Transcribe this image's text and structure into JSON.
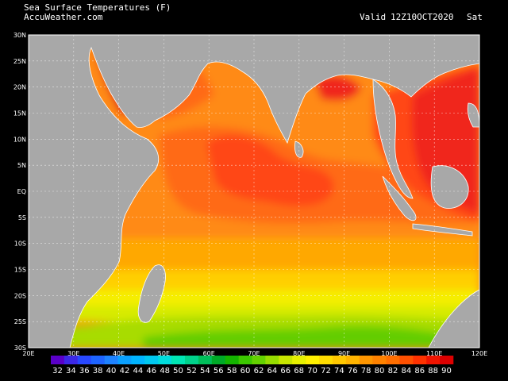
{
  "header": {
    "title": "Sea Surface Temperatures (F)",
    "source": "AccuWeather.com",
    "valid_label": "Valid",
    "valid_time": "12Z10OCT2020",
    "weekday": "Sat"
  },
  "map": {
    "lon_labels": [
      "20E",
      "30E",
      "40E",
      "50E",
      "60E",
      "70E",
      "80E",
      "90E",
      "100E",
      "110E",
      "120E"
    ],
    "lat_labels": [
      "30N",
      "25N",
      "20N",
      "15N",
      "10N",
      "5N",
      "EQ",
      "5S",
      "10S",
      "15S",
      "20S",
      "25S",
      "30S"
    ]
  },
  "legend": {
    "values": [
      "32",
      "34",
      "36",
      "38",
      "40",
      "42",
      "44",
      "46",
      "48",
      "50",
      "52",
      "54",
      "56",
      "58",
      "60",
      "62",
      "64",
      "66",
      "68",
      "70",
      "72",
      "74",
      "76",
      "78",
      "80",
      "82",
      "84",
      "86",
      "88",
      "90"
    ],
    "colors": [
      "#5a00c8",
      "#3c28e6",
      "#2848ff",
      "#1e64ff",
      "#1e82ff",
      "#0aa0ff",
      "#00b4ff",
      "#00c8f0",
      "#00dcdc",
      "#00e6b4",
      "#00d28c",
      "#00be5a",
      "#00aa28",
      "#14b400",
      "#3cc800",
      "#64d200",
      "#96dc00",
      "#c8e600",
      "#e6f000",
      "#fff000",
      "#ffdc00",
      "#ffc800",
      "#ffb400",
      "#ff9600",
      "#ff8200",
      "#ff6e00",
      "#ff5000",
      "#ff3200",
      "#f01400",
      "#dc0000"
    ],
    "ocean_colors": {
      "c76": "#ffcf00",
      "c78": "#ffa800",
      "c80": "#ff8a14",
      "c82": "#ff6a14",
      "c84": "#ff4614",
      "c86": "#f0281e",
      "c88": "#dc141e",
      "c74": "#f5ee00",
      "c72": "#d7eb00",
      "c70": "#a8dc00",
      "c68": "#64cd00",
      "land": "#a8a8a8"
    }
  }
}
